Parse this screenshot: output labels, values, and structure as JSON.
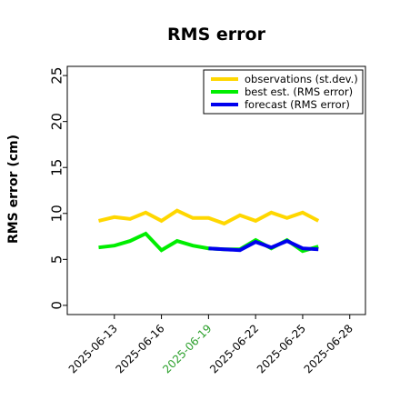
{
  "chart_data": {
    "type": "line",
    "title": "RMS error",
    "ylabel": "RMS error (cm)",
    "xlabel": "",
    "ylim": [
      -1,
      26
    ],
    "yticks": [
      0,
      5,
      10,
      15,
      20,
      25
    ],
    "xlim": [
      "2025-06-10",
      "2025-06-29"
    ],
    "xticks": [
      {
        "date": "2025-06-13",
        "label": "2025-06-13",
        "color": "#000000"
      },
      {
        "date": "2025-06-16",
        "label": "2025-06-16",
        "color": "#000000"
      },
      {
        "date": "2025-06-19",
        "label": "2025-06-19",
        "color": "#2ca02c"
      },
      {
        "date": "2025-06-22",
        "label": "2025-06-22",
        "color": "#000000"
      },
      {
        "date": "2025-06-25",
        "label": "2025-06-25",
        "color": "#000000"
      },
      {
        "date": "2025-06-28",
        "label": "2025-06-28",
        "color": "#000000"
      }
    ],
    "grid": false,
    "legend_position": "top-right",
    "series": [
      {
        "name": "observations (st.dev.)",
        "color": "#ffd700",
        "x": [
          "2025-06-12",
          "2025-06-13",
          "2025-06-14",
          "2025-06-15",
          "2025-06-16",
          "2025-06-17",
          "2025-06-18",
          "2025-06-19",
          "2025-06-20",
          "2025-06-21",
          "2025-06-22",
          "2025-06-23",
          "2025-06-24",
          "2025-06-25",
          "2025-06-26"
        ],
        "y": [
          9.2,
          9.6,
          9.4,
          10.1,
          9.2,
          10.3,
          9.5,
          9.5,
          8.9,
          9.8,
          9.2,
          10.1,
          9.5,
          10.1,
          9.2
        ]
      },
      {
        "name": "best est. (RMS error)",
        "color": "#00ee00",
        "x": [
          "2025-06-12",
          "2025-06-13",
          "2025-06-14",
          "2025-06-15",
          "2025-06-16",
          "2025-06-17",
          "2025-06-18",
          "2025-06-19",
          "2025-06-20",
          "2025-06-21",
          "2025-06-22",
          "2025-06-23",
          "2025-06-24",
          "2025-06-25",
          "2025-06-26"
        ],
        "y": [
          6.3,
          6.5,
          7.0,
          7.8,
          6.0,
          7.0,
          6.5,
          6.2,
          6.1,
          6.1,
          7.1,
          6.2,
          7.1,
          5.9,
          6.4
        ]
      },
      {
        "name": "forecast (RMS error)",
        "color": "#0000ee",
        "x": [
          "2025-06-19",
          "2025-06-20",
          "2025-06-21",
          "2025-06-22",
          "2025-06-23",
          "2025-06-24",
          "2025-06-25",
          "2025-06-26"
        ],
        "y": [
          6.2,
          6.1,
          6.0,
          6.9,
          6.3,
          7.0,
          6.2,
          6.1
        ]
      }
    ]
  }
}
